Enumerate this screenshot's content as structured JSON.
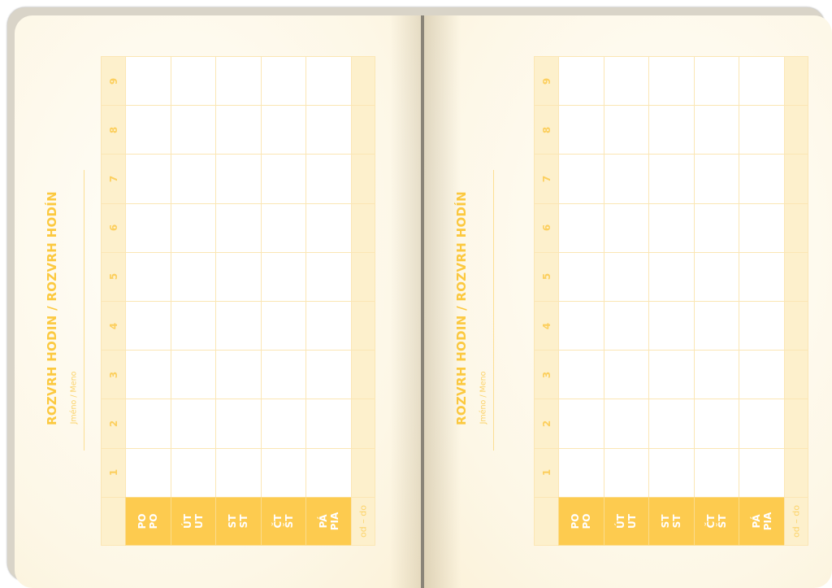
{
  "pages": [
    {
      "side": "left",
      "title": "ROZVRH HODIN / ROZVRH HODÍN",
      "name_label": "Jméno / Meno"
    },
    {
      "side": "right",
      "title": "ROZVRH HODIN / ROZVRH HODÍN",
      "name_label": "Jméno / Meno"
    }
  ],
  "schedule": {
    "lessons": [
      "1",
      "2",
      "3",
      "4",
      "5",
      "6",
      "7",
      "8",
      "9"
    ],
    "days": [
      {
        "cz": "PO",
        "sk": "PO"
      },
      {
        "cz": "ÚT",
        "sk": "UT"
      },
      {
        "cz": "ST",
        "sk": "ST"
      },
      {
        "cz": "ČT",
        "sk": "ŠT"
      },
      {
        "cz": "PÁ",
        "sk": "PIA"
      }
    ],
    "time_label": "od – do"
  },
  "colors": {
    "accent": "#fdcb4f",
    "title": "#fcc93f",
    "tint": "#fdf0cc",
    "line": "#fbe6b4"
  }
}
